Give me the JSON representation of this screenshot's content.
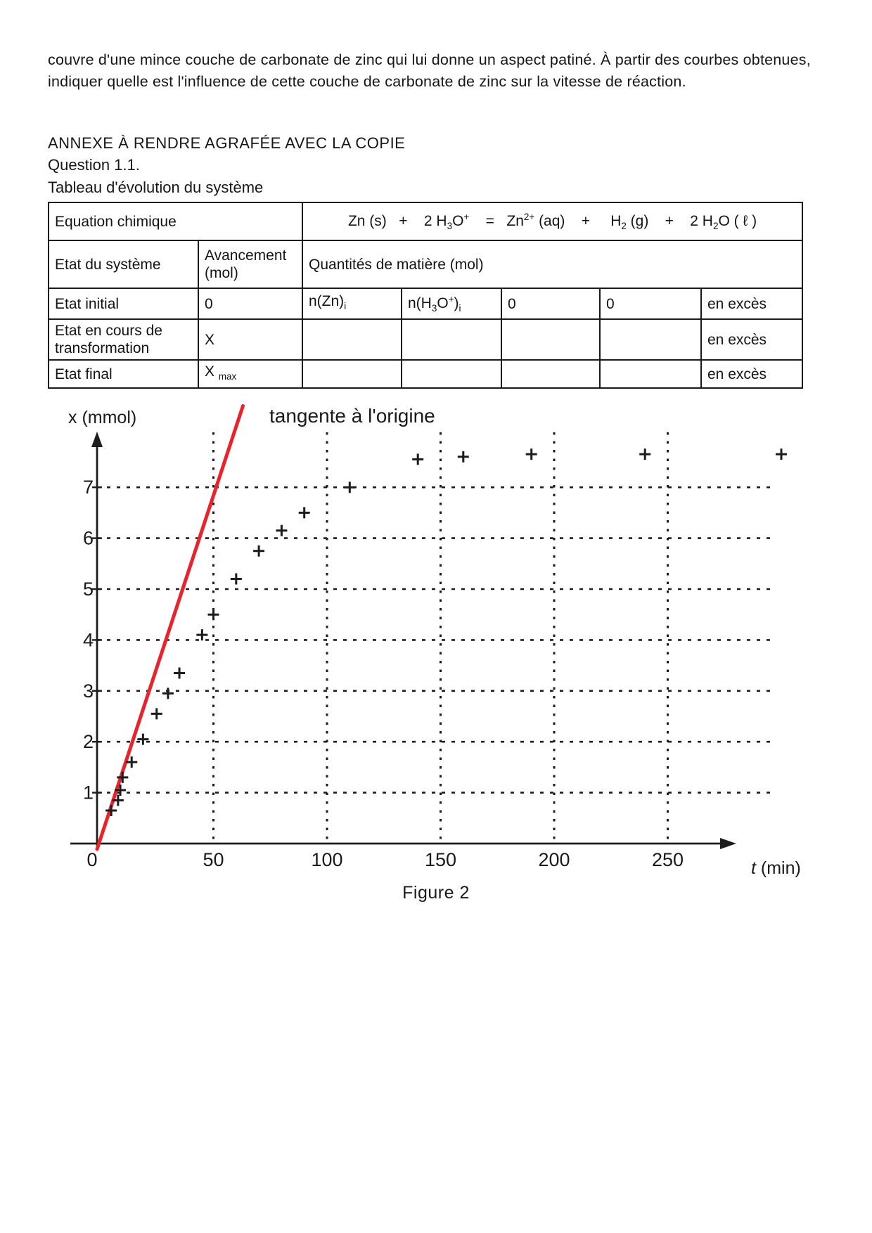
{
  "page": {
    "intro_lines": [
      "couvre d'une mince couche de carbonate de zinc qui lui donne un aspect patiné. À partir des courbes obtenues,",
      "indiquer quelle est l'influence de cette couche de carbonate de zinc sur la vitesse de réaction."
    ],
    "annexe_heading": "ANNEXE À RENDRE AGRAFÉE AVEC LA COPIE",
    "question_label": "Question 1.1.",
    "table_title": "Tableau d'évolution du système"
  },
  "table": {
    "equation_label": "Equation chimique",
    "equation_rich": "Zn (s)   +    2 H_3_O^+^    =   Zn^2+^ (aq)    +     H_2_ (g)    +    2 H_2_O ( ℓ )",
    "state_header": "Etat du système",
    "avancement_header": "Avancement (mol)",
    "quantities_header": "Quantités de matière (mol)",
    "rows": [
      {
        "cells": [
          "Etat initial",
          "0",
          "n(Zn)_i_",
          "n(H_3_O^+^)_i_",
          "0",
          "0",
          "en excès"
        ]
      },
      {
        "cells": [
          "Etat en cours de transformation",
          "X",
          "",
          "",
          "",
          "",
          "en excès"
        ]
      },
      {
        "cells": [
          "Etat final",
          "X _max_",
          "",
          "",
          "",
          "",
          "en excès"
        ]
      }
    ]
  },
  "chart_data": {
    "type": "scatter",
    "title": "Figure 2",
    "caption": "Figure 2",
    "xlabel": "t (min)",
    "ylabel": "x (mmol)",
    "xlim": [
      0,
      310
    ],
    "ylim": [
      0,
      8.8
    ],
    "x_ticks": [
      0,
      50,
      100,
      150,
      200,
      250
    ],
    "y_ticks": [
      1,
      2,
      3,
      4,
      5,
      6,
      7
    ],
    "grid": "dotted",
    "legend": "none",
    "marker": "+",
    "points": {
      "t_min": [
        5,
        8,
        9,
        10,
        14,
        19,
        25,
        30,
        35,
        45,
        50,
        60,
        70,
        80,
        90,
        110,
        140,
        160,
        190,
        240,
        300
      ],
      "x_mmol": [
        0.65,
        0.85,
        1.05,
        1.3,
        1.6,
        2.05,
        2.55,
        2.95,
        3.35,
        4.1,
        4.5,
        5.2,
        5.75,
        6.15,
        6.5,
        7.0,
        7.55,
        7.6,
        7.65,
        7.65,
        7.65
      ]
    },
    "plateau_mmol": 7.65,
    "tangent": {
      "label": "tangente à l'origine",
      "color": "#e8232d",
      "from_t_x": [
        0,
        0
      ],
      "to_t_x": [
        63,
        8.6
      ],
      "slope_mmol_per_min": 0.14
    }
  }
}
